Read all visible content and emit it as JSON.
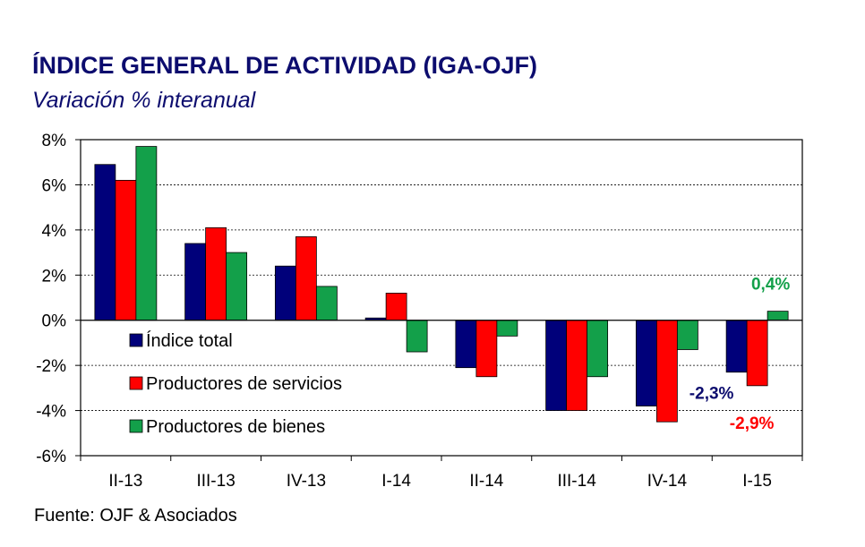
{
  "header": {
    "title": "ÍNDICE GENERAL DE ACTIVIDAD (IGA-OJF)",
    "subtitle": "Variación % interanual"
  },
  "footer": {
    "source": "Fuente: OJF & Asociados"
  },
  "chart_data": {
    "type": "bar",
    "title": "ÍNDICE GENERAL DE ACTIVIDAD (IGA-OJF)",
    "subtitle": "Variación % interanual",
    "categories": [
      "II-13",
      "III-13",
      "IV-13",
      "I-14",
      "II-14",
      "III-14",
      "IV-14",
      "I-15"
    ],
    "series": [
      {
        "name": "Índice total",
        "color": "#00007a",
        "values": [
          6.9,
          3.4,
          2.4,
          0.1,
          -2.1,
          -4.0,
          -3.8,
          -2.3
        ]
      },
      {
        "name": "Productores de servicios",
        "color": "#ff0000",
        "values": [
          6.2,
          4.1,
          3.7,
          1.2,
          -2.5,
          -4.0,
          -4.5,
          -2.9
        ]
      },
      {
        "name": "Productores de bienes",
        "color": "#13a04a",
        "values": [
          7.7,
          3.0,
          1.5,
          -1.4,
          -0.7,
          -2.5,
          -1.3,
          0.4
        ]
      }
    ],
    "ylim": [
      -6,
      8
    ],
    "yticks": [
      8,
      6,
      4,
      2,
      0,
      -2,
      -4,
      -6
    ],
    "ytick_labels": [
      "8%",
      "6%",
      "4%",
      "2%",
      "0%",
      "-2%",
      "-4%",
      "-6%"
    ],
    "xlabel": "",
    "ylabel": "",
    "grid": true,
    "legend": "inside-bottom-left",
    "annotations": [
      {
        "text": "0,4%",
        "series": 2,
        "category": 7,
        "color": "#13a04a"
      },
      {
        "text": "-2,3%",
        "series": 0,
        "category": 7,
        "color": "#0c0c6e"
      },
      {
        "text": "-2,9%",
        "series": 1,
        "category": 7,
        "color": "#ff0000"
      }
    ]
  }
}
